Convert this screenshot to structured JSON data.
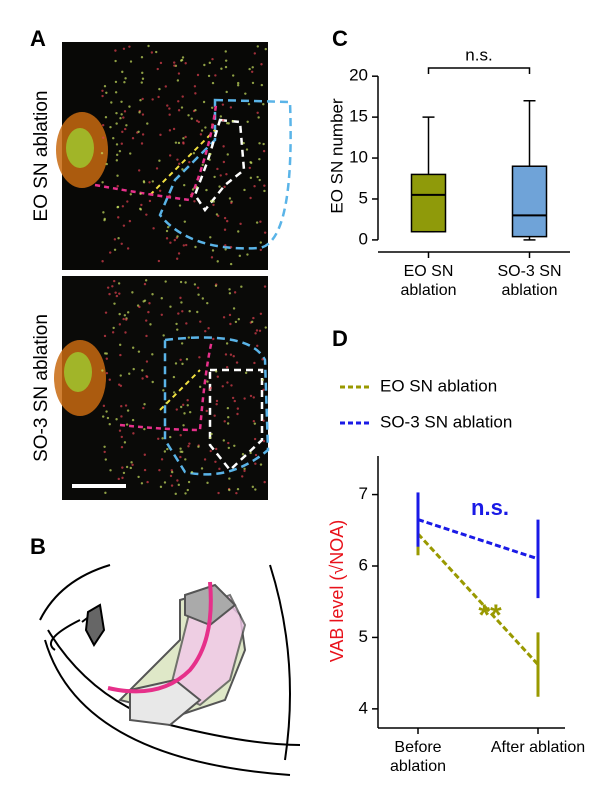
{
  "panel_labels": [
    "A",
    "B",
    "C",
    "D"
  ],
  "image_labels": [
    "EO SN ablation",
    "SO-3 SN ablation"
  ],
  "chart_data": [
    {
      "type": "box",
      "ylabel": "EO SN number",
      "annotation": "n.s.",
      "categories": [
        "EO SN ablation",
        "SO-3 SN ablation"
      ],
      "series": [
        {
          "name": "EO SN ablation",
          "color": "#8f9a0a",
          "min": 1,
          "q1": 1,
          "median": 5.5,
          "q3": 8,
          "max": 15
        },
        {
          "name": "SO-3 SN ablation",
          "color": "#6fa3d8",
          "min": 0,
          "q1": 0.4,
          "median": 3,
          "q3": 9,
          "max": 17
        }
      ],
      "ylim": [
        -0.5,
        21
      ],
      "yticks": [
        0,
        5,
        10,
        15,
        20
      ]
    },
    {
      "type": "line",
      "ylabel": "VAB level (√NOA)",
      "categories": [
        "Before ablation",
        "After ablation"
      ],
      "series": [
        {
          "name": "EO SN ablation",
          "color": "#999900",
          "values": [
            6.45,
            4.62
          ],
          "errors": [
            0.3,
            0.45
          ],
          "annotation": "**"
        },
        {
          "name": "SO-3 SN ablation",
          "color": "#1a1ae6",
          "values": [
            6.65,
            6.1
          ],
          "errors": [
            0.38,
            0.55
          ],
          "annotation": "n.s."
        }
      ],
      "ylim": [
        3.9,
        7.4
      ],
      "yticks": [
        4,
        5,
        6,
        7
      ],
      "legend": "top"
    }
  ]
}
